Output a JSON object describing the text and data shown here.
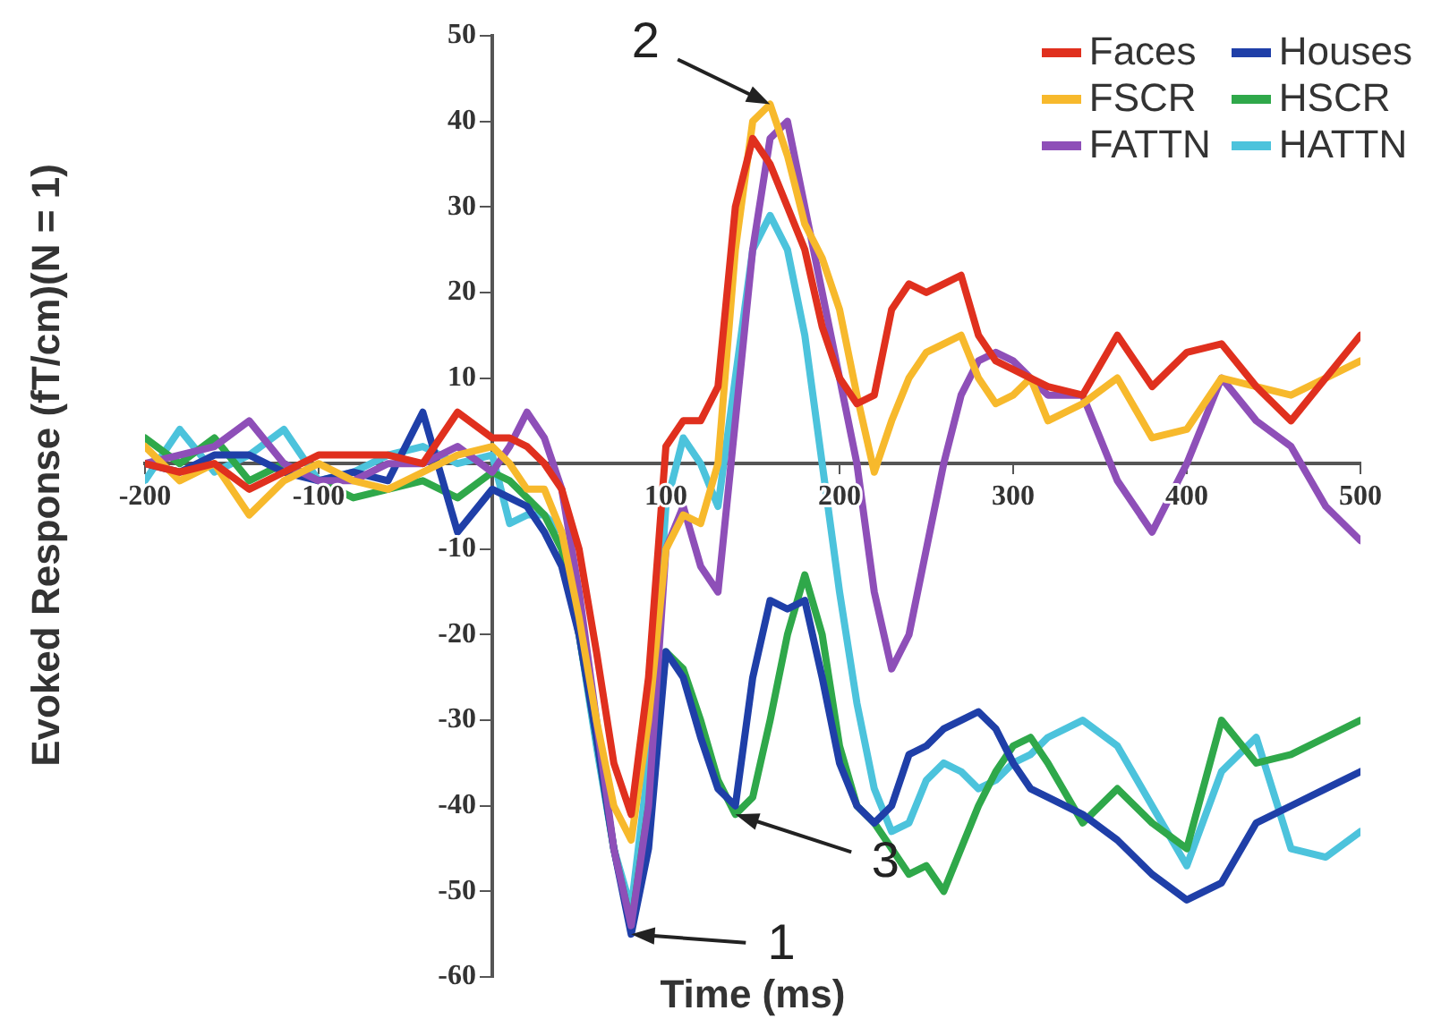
{
  "chart_data": {
    "type": "line",
    "xlabel": "Time (ms)",
    "ylabel": "Evoked Response (fT/cm)(N = 1)",
    "x": [
      -200,
      -180,
      -160,
      -140,
      -120,
      -100,
      -80,
      -60,
      -40,
      -20,
      0,
      10,
      20,
      30,
      40,
      50,
      60,
      70,
      80,
      90,
      100,
      110,
      120,
      130,
      140,
      150,
      160,
      170,
      180,
      190,
      200,
      210,
      220,
      230,
      240,
      250,
      260,
      270,
      280,
      290,
      300,
      310,
      320,
      340,
      360,
      380,
      400,
      420,
      440,
      460,
      480,
      500
    ],
    "series": [
      {
        "name": "Faces",
        "color": "#e0301e",
        "values": [
          0,
          -1,
          0,
          -3,
          -1,
          1,
          1,
          1,
          0,
          6,
          3,
          3,
          2,
          0,
          -3,
          -10,
          -22,
          -35,
          -41,
          -25,
          2,
          5,
          5,
          9,
          30,
          38,
          35,
          30,
          25,
          16,
          10,
          7,
          8,
          18,
          21,
          20,
          21,
          22,
          15,
          12,
          11,
          10,
          9,
          8,
          15,
          9,
          13,
          14,
          9,
          5,
          10,
          15
        ]
      },
      {
        "name": "FSCR",
        "color": "#f7b92c",
        "values": [
          2,
          -2,
          0,
          -6,
          -2,
          0,
          -2,
          -3,
          -1,
          1,
          2,
          0,
          -3,
          -3,
          -8,
          -18,
          -30,
          -40,
          -44,
          -30,
          -10,
          -6,
          -7,
          0,
          25,
          40,
          42,
          36,
          28,
          24,
          18,
          8,
          -1,
          5,
          10,
          13,
          14,
          15,
          10,
          7,
          8,
          10,
          5,
          7,
          10,
          3,
          4,
          10,
          9,
          8,
          10,
          12
        ]
      },
      {
        "name": "FATTN",
        "color": "#8e4fb8",
        "values": [
          0,
          1,
          2,
          5,
          0,
          -2,
          -2,
          0,
          0,
          2,
          -1,
          2,
          6,
          3,
          -3,
          -15,
          -30,
          -45,
          -54,
          -40,
          -10,
          -5,
          -12,
          -15,
          5,
          25,
          38,
          40,
          30,
          20,
          10,
          0,
          -15,
          -24,
          -20,
          -10,
          0,
          8,
          12,
          13,
          12,
          10,
          8,
          8,
          -2,
          -8,
          0,
          10,
          5,
          2,
          -5,
          -9
        ]
      },
      {
        "name": "Houses",
        "color": "#1f3fa8",
        "values": [
          0,
          -1,
          1,
          1,
          -1,
          -2,
          -1,
          -2,
          6,
          -8,
          -3,
          -4,
          -5,
          -8,
          -12,
          -20,
          -32,
          -45,
          -55,
          -45,
          -22,
          -25,
          -32,
          -38,
          -40,
          -25,
          -16,
          -17,
          -16,
          -25,
          -35,
          -40,
          -42,
          -40,
          -34,
          -33,
          -31,
          -30,
          -29,
          -31,
          -35,
          -38,
          -39,
          -41,
          -44,
          -48,
          -51,
          -49,
          -42,
          -40,
          -38,
          -36
        ]
      },
      {
        "name": "HSCR",
        "color": "#2fa84a",
        "values": [
          3,
          0,
          3,
          -2,
          0,
          -2,
          -4,
          -3,
          -2,
          -4,
          -1,
          -2,
          -4,
          -6,
          -10,
          -20,
          -32,
          -45,
          -54,
          -40,
          -22,
          -24,
          -30,
          -37,
          -41,
          -39,
          -30,
          -20,
          -13,
          -20,
          -33,
          -40,
          -42,
          -45,
          -48,
          -47,
          -50,
          -45,
          -40,
          -36,
          -33,
          -32,
          -35,
          -42,
          -38,
          -42,
          -45,
          -30,
          -35,
          -34,
          -32,
          -30
        ]
      },
      {
        "name": "HATTN",
        "color": "#4cc3dc",
        "values": [
          -2,
          4,
          -1,
          1,
          4,
          -2,
          -1,
          1,
          2,
          0,
          1,
          -7,
          -6,
          -6,
          -8,
          -20,
          -33,
          -45,
          -52,
          -35,
          -5,
          3,
          0,
          -5,
          10,
          25,
          29,
          25,
          15,
          0,
          -15,
          -28,
          -38,
          -43,
          -42,
          -37,
          -35,
          -36,
          -38,
          -37,
          -35,
          -34,
          -32,
          -30,
          -33,
          -40,
          -47,
          -36,
          -32,
          -45,
          -46,
          -43
        ]
      }
    ],
    "xlim": [
      -200,
      500
    ],
    "xticks": [
      -200,
      -100,
      100,
      200,
      300,
      400,
      500
    ],
    "ylim": [
      -60,
      50
    ],
    "yticks": [
      50,
      40,
      30,
      20,
      10,
      -10,
      -20,
      -30,
      -40,
      -50,
      -60
    ],
    "annotations": [
      {
        "text": "1",
        "x": 80,
        "y": -55
      },
      {
        "text": "2",
        "x": 160,
        "y": 42
      },
      {
        "text": "3",
        "x": 140,
        "y": -41
      }
    ],
    "legend": "top right",
    "grid": false,
    "marker": "none",
    "line_style": "solid"
  }
}
